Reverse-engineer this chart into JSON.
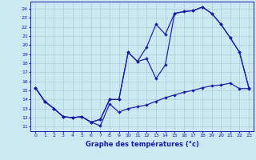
{
  "xlabel": "Graphe des températures (°c)",
  "bg_color": "#cce8f0",
  "line_color": "#1a1aaa",
  "grid_color": "#aaccd8",
  "xlim": [
    -0.5,
    23.5
  ],
  "ylim": [
    10.5,
    24.8
  ],
  "yticks": [
    11,
    12,
    13,
    14,
    15,
    16,
    17,
    18,
    19,
    20,
    21,
    22,
    23,
    24
  ],
  "xticks": [
    0,
    1,
    2,
    3,
    4,
    5,
    6,
    7,
    8,
    9,
    10,
    11,
    12,
    13,
    14,
    15,
    16,
    17,
    18,
    19,
    20,
    21,
    22,
    23
  ],
  "line1_x": [
    0,
    1,
    2,
    3,
    4,
    5,
    6,
    7,
    8,
    9,
    10,
    11,
    12,
    13,
    14,
    15,
    16,
    17,
    18,
    19,
    20,
    21,
    22,
    23
  ],
  "line1_y": [
    15.3,
    13.8,
    13.0,
    12.1,
    12.0,
    12.1,
    11.5,
    11.1,
    13.5,
    12.6,
    13.0,
    13.2,
    13.4,
    13.8,
    14.2,
    14.5,
    14.8,
    15.0,
    15.3,
    15.5,
    15.6,
    15.8,
    15.2,
    15.2
  ],
  "line2_x": [
    0,
    1,
    2,
    3,
    4,
    5,
    6,
    7,
    8,
    9,
    10,
    11,
    12,
    13,
    14,
    15,
    16,
    17,
    18,
    19,
    20,
    21,
    22,
    23
  ],
  "line2_y": [
    15.3,
    13.8,
    13.0,
    12.1,
    12.0,
    12.1,
    11.5,
    11.8,
    14.0,
    14.0,
    19.2,
    18.2,
    18.5,
    16.3,
    17.8,
    23.5,
    23.7,
    23.8,
    24.2,
    23.5,
    22.3,
    20.8,
    19.2,
    15.3
  ],
  "line3_x": [
    0,
    1,
    2,
    3,
    4,
    5,
    6,
    7,
    8,
    9,
    10,
    11,
    12,
    13,
    14,
    15,
    16,
    17,
    18,
    19,
    20,
    21,
    22,
    23
  ],
  "line3_y": [
    15.3,
    13.8,
    13.0,
    12.1,
    12.0,
    12.1,
    11.5,
    11.8,
    14.0,
    14.0,
    19.2,
    18.2,
    19.8,
    22.3,
    21.2,
    23.5,
    23.7,
    23.8,
    24.2,
    23.5,
    22.3,
    20.8,
    19.2,
    15.3
  ]
}
